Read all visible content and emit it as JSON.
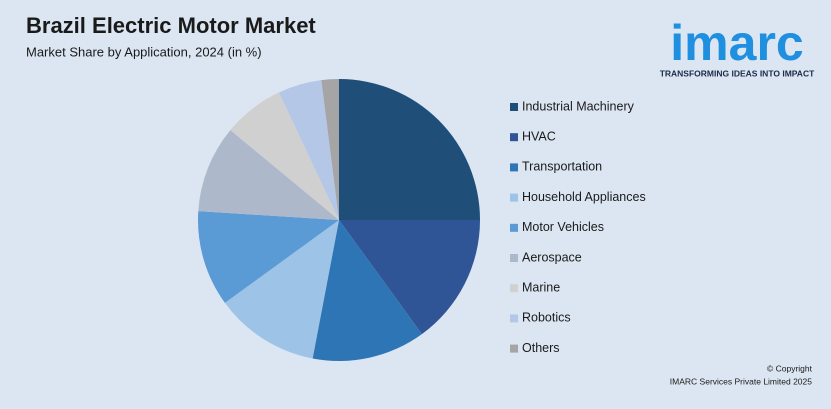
{
  "chart_data": {
    "type": "pie",
    "title": "Brazil Electric Motor Market",
    "subtitle": "Market Share by Application, 2024 (in %)",
    "categories": [
      "Industrial Machinery",
      "HVAC",
      "Transportation",
      "Household Appliances",
      "Motor Vehicles",
      "Aerospace",
      "Marine",
      "Robotics",
      "Others"
    ],
    "values": [
      25,
      15,
      13,
      12,
      11,
      10,
      7,
      5,
      2
    ],
    "colors": [
      "#1f4e79",
      "#2f5597",
      "#2e75b6",
      "#9dc3e6",
      "#5b9bd5",
      "#adb9ca",
      "#d0d0d0",
      "#b4c7e7",
      "#a5a5a5"
    ]
  },
  "logo": {
    "name": "imarc",
    "tagline": "TRANSFORMING IDEAS INTO IMPACT"
  },
  "footer": {
    "copyright": "© Copyright",
    "company": "IMARC Services Private Limited 2025"
  }
}
